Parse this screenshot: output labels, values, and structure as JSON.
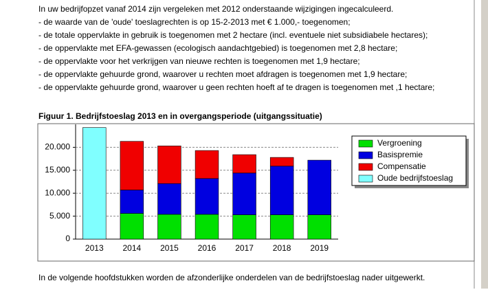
{
  "document": {
    "lines": [
      "In uw bedrijfopzet vanaf 2014 zijn vergeleken met 2012 onderstaande wijzigingen ingecalculeerd.",
      "- de waarde van de 'oude' toeslagrechten is op 15-2-2013 met € 1.000,- toegenomen;",
      "- de totale oppervlakte in gebruik is toegenomen met 2 hectare (incl. eventuele niet subsidiabele hectares);",
      "- de oppervlakte met EFA-gewassen (ecologisch aandachtgebied) is toegenomen met 2,8 hectare;",
      "- de oppervlakte voor het verkrijgen van nieuwe rechten is toegenomen met 1,9 hectare;",
      "- de oppervlakte gehuurde grond, waarover u rechten moet afdragen is toegenomen met 1,9 hectare;",
      "- de oppervlakte gehuurde grond, waarover u geen rechten hoeft af te dragen is toegenomen met ,1 hectare;"
    ],
    "footer": "In de volgende hoofdstukken worden de afzonderlijke onderdelen van de bedrijfstoeslag nader uitgewerkt."
  },
  "chart_data": {
    "type": "stacked_bar",
    "title": "Figuur 1. Bedrijfstoeslag 2013 en in overgangsperiode (uitgangssituatie)",
    "categories": [
      "2013",
      "2014",
      "2015",
      "2016",
      "2017",
      "2018",
      "2019"
    ],
    "series": [
      {
        "name": "Vergroening",
        "color": "#00e000",
        "values": [
          null,
          5600,
          5400,
          5400,
          5300,
          5300,
          5300
        ]
      },
      {
        "name": "Basispremie",
        "color": "#0000e0",
        "values": [
          null,
          5100,
          6700,
          7800,
          9100,
          10600,
          11900
        ]
      },
      {
        "name": "Compensatie",
        "color": "#f00000",
        "values": [
          null,
          10600,
          8200,
          6100,
          4000,
          1900,
          null
        ]
      },
      {
        "name": "Oude bedrijfstoeslag",
        "color": "#80ffff",
        "values": [
          24300,
          null,
          null,
          null,
          null,
          null,
          null
        ]
      }
    ],
    "ylim": [
      0,
      25000
    ],
    "yticks": [
      0,
      {
        "value": 5000,
        "label": "5.000"
      },
      {
        "value": 10000,
        "label": "10.000"
      },
      {
        "value": 15000,
        "label": "15.000"
      },
      {
        "value": 20000,
        "label": "20.000"
      }
    ],
    "grid": true,
    "legend": "top-right"
  }
}
